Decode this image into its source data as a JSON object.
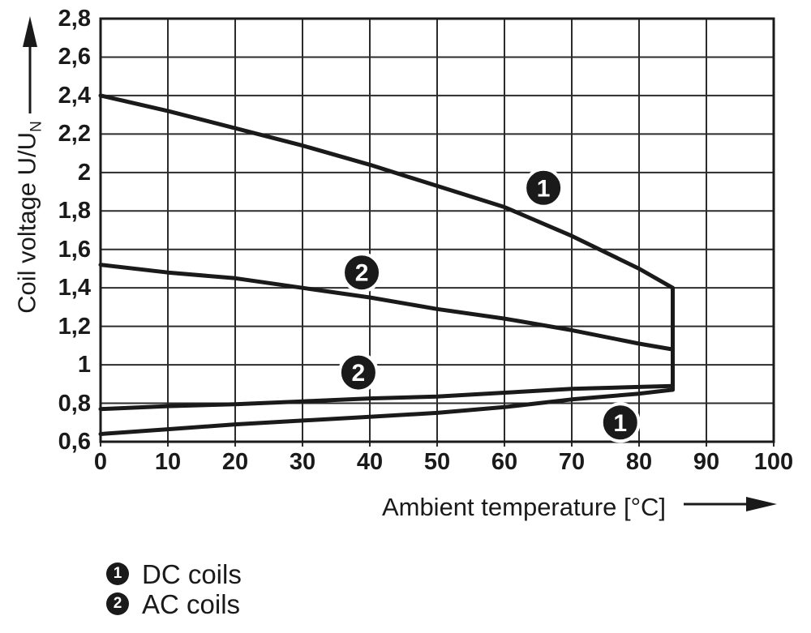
{
  "chart_data": {
    "type": "line",
    "title": "",
    "xlabel": "Ambient temperature [°C]",
    "ylabel": "Coil voltage U/U",
    "ylabel_sub": "N",
    "xlim": [
      0,
      100
    ],
    "ylim": [
      0.6,
      2.8
    ],
    "grid": true,
    "line_color": "#1a1a1a",
    "grid_color": "#2b2b2b",
    "marker_fill": "#1a1a1a",
    "marker_text_color": "#ffffff",
    "x_ticks": [
      {
        "value": 0,
        "label": "0"
      },
      {
        "value": 10,
        "label": "10"
      },
      {
        "value": 20,
        "label": "20"
      },
      {
        "value": 30,
        "label": "30"
      },
      {
        "value": 40,
        "label": "40"
      },
      {
        "value": 50,
        "label": "50"
      },
      {
        "value": 60,
        "label": "60"
      },
      {
        "value": 70,
        "label": "70"
      },
      {
        "value": 80,
        "label": "80"
      },
      {
        "value": 90,
        "label": "90"
      },
      {
        "value": 100,
        "label": "100"
      }
    ],
    "y_ticks": [
      {
        "value": 2.8,
        "label": "2,8"
      },
      {
        "value": 2.6,
        "label": "2,6"
      },
      {
        "value": 2.4,
        "label": "2,4"
      },
      {
        "value": 2.2,
        "label": "2,2"
      },
      {
        "value": 2.0,
        "label": "2"
      },
      {
        "value": 1.8,
        "label": "1,8"
      },
      {
        "value": 1.6,
        "label": "1,6"
      },
      {
        "value": 1.4,
        "label": "1,4"
      },
      {
        "value": 1.2,
        "label": "1,2"
      },
      {
        "value": 1.0,
        "label": "1"
      },
      {
        "value": 0.8,
        "label": "0,8"
      },
      {
        "value": 0.6,
        "label": "0,6"
      }
    ],
    "series": [
      {
        "name": "DC coils upper limit",
        "curve_id": "1",
        "points": [
          [
            0,
            2.4
          ],
          [
            10,
            2.32
          ],
          [
            20,
            2.23
          ],
          [
            30,
            2.14
          ],
          [
            40,
            2.04
          ],
          [
            50,
            1.93
          ],
          [
            60,
            1.82
          ],
          [
            70,
            1.67
          ],
          [
            80,
            1.5
          ],
          [
            85,
            1.4
          ],
          [
            85,
            0.87
          ]
        ]
      },
      {
        "name": "AC coils upper limit",
        "curve_id": "2",
        "points": [
          [
            0,
            1.52
          ],
          [
            10,
            1.48
          ],
          [
            20,
            1.45
          ],
          [
            30,
            1.4
          ],
          [
            40,
            1.35
          ],
          [
            50,
            1.29
          ],
          [
            60,
            1.24
          ],
          [
            70,
            1.18
          ],
          [
            80,
            1.11
          ],
          [
            85,
            1.08
          ]
        ]
      },
      {
        "name": "AC coils lower limit",
        "curve_id": "2",
        "points": [
          [
            0,
            0.77
          ],
          [
            10,
            0.785
          ],
          [
            20,
            0.795
          ],
          [
            30,
            0.81
          ],
          [
            40,
            0.825
          ],
          [
            50,
            0.835
          ],
          [
            60,
            0.855
          ],
          [
            70,
            0.875
          ],
          [
            80,
            0.885
          ],
          [
            85,
            0.89
          ]
        ]
      },
      {
        "name": "DC coils lower limit",
        "curve_id": "1",
        "points": [
          [
            0,
            0.64
          ],
          [
            10,
            0.665
          ],
          [
            20,
            0.69
          ],
          [
            30,
            0.71
          ],
          [
            40,
            0.73
          ],
          [
            50,
            0.75
          ],
          [
            60,
            0.78
          ],
          [
            70,
            0.82
          ],
          [
            80,
            0.85
          ],
          [
            85,
            0.87
          ]
        ]
      }
    ],
    "curve_markers": [
      {
        "label": "1",
        "x": 65.8,
        "y": 1.92
      },
      {
        "label": "2",
        "x": 38.8,
        "y": 1.48
      },
      {
        "label": "2",
        "x": 38.3,
        "y": 0.96
      },
      {
        "label": "1",
        "x": 77.2,
        "y": 0.7
      }
    ]
  },
  "legend": {
    "items": [
      {
        "symbol": "1",
        "label": "DC coils"
      },
      {
        "symbol": "2",
        "label": "AC coils"
      }
    ]
  }
}
